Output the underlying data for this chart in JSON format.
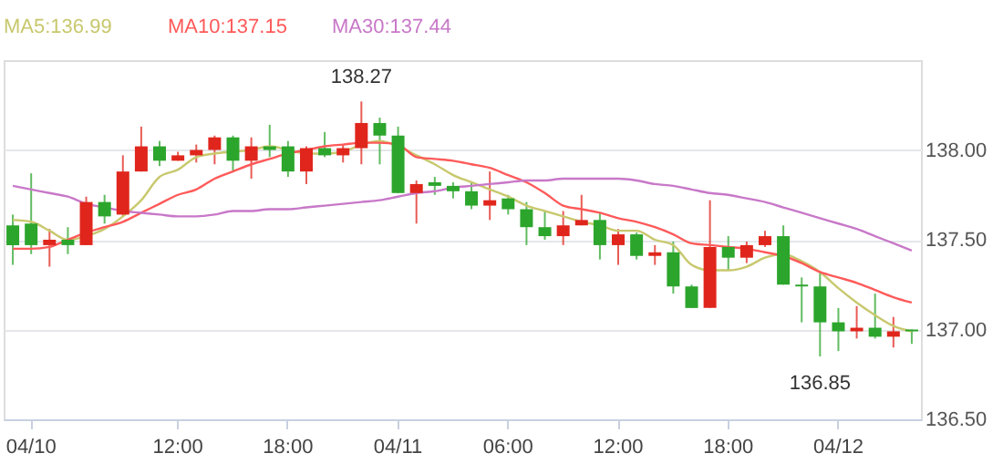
{
  "chart_data": {
    "type": "candlestick",
    "categories": [
      null,
      "04/10",
      null,
      null,
      null,
      null,
      null,
      null,
      null,
      "12:00",
      null,
      null,
      null,
      null,
      null,
      "18:00",
      null,
      null,
      null,
      null,
      null,
      "04/11",
      null,
      null,
      null,
      null,
      null,
      "06:00",
      null,
      null,
      null,
      null,
      null,
      "12:00",
      null,
      null,
      null,
      null,
      null,
      "18:00",
      null,
      null,
      null,
      null,
      null,
      "04/12",
      null,
      null,
      null,
      null
    ],
    "ohlc": [
      [
        137.58,
        137.64,
        137.36,
        137.47
      ],
      [
        137.59,
        137.87,
        137.42,
        137.47
      ],
      [
        137.47,
        137.56,
        137.35,
        137.5
      ],
      [
        137.5,
        137.57,
        137.42,
        137.47
      ],
      [
        137.47,
        137.74,
        137.47,
        137.71
      ],
      [
        137.71,
        137.75,
        137.59,
        137.63
      ],
      [
        137.64,
        137.97,
        137.63,
        137.88
      ],
      [
        137.88,
        138.13,
        137.88,
        138.02
      ],
      [
        138.02,
        138.05,
        137.91,
        137.94
      ],
      [
        137.94,
        137.99,
        137.94,
        137.97
      ],
      [
        137.97,
        138.03,
        137.93,
        138.0
      ],
      [
        138.0,
        138.08,
        137.92,
        138.07
      ],
      [
        138.07,
        138.08,
        137.88,
        137.94
      ],
      [
        137.94,
        138.07,
        137.84,
        138.02
      ],
      [
        138.02,
        138.14,
        137.96,
        138.0
      ],
      [
        138.02,
        138.05,
        137.85,
        137.88
      ],
      [
        137.88,
        138.02,
        137.81,
        138.01
      ],
      [
        138.01,
        138.1,
        137.96,
        137.97
      ],
      [
        137.97,
        138.03,
        137.93,
        138.01
      ],
      [
        138.01,
        138.27,
        137.92,
        138.15
      ],
      [
        138.15,
        138.18,
        137.92,
        138.08
      ],
      [
        138.08,
        138.13,
        137.76,
        137.76
      ],
      [
        137.76,
        137.83,
        137.59,
        137.81
      ],
      [
        137.82,
        137.85,
        137.75,
        137.8
      ],
      [
        137.8,
        137.82,
        137.73,
        137.77
      ],
      [
        137.77,
        137.82,
        137.67,
        137.69
      ],
      [
        137.69,
        137.88,
        137.61,
        137.72
      ],
      [
        137.73,
        137.75,
        137.64,
        137.67
      ],
      [
        137.67,
        137.71,
        137.47,
        137.57
      ],
      [
        137.57,
        137.66,
        137.5,
        137.52
      ],
      [
        137.52,
        137.66,
        137.47,
        137.58
      ],
      [
        137.58,
        137.75,
        137.58,
        137.61
      ],
      [
        137.61,
        137.65,
        137.39,
        137.47
      ],
      [
        137.47,
        137.56,
        137.36,
        137.53
      ],
      [
        137.53,
        137.54,
        137.39,
        137.41
      ],
      [
        137.41,
        137.47,
        137.36,
        137.43
      ],
      [
        137.43,
        137.49,
        137.2,
        137.24
      ],
      [
        137.24,
        137.25,
        137.12,
        137.12
      ],
      [
        137.12,
        137.72,
        137.12,
        137.46
      ],
      [
        137.46,
        137.52,
        137.33,
        137.4
      ],
      [
        137.4,
        137.49,
        137.37,
        137.47
      ],
      [
        137.47,
        137.55,
        137.46,
        137.52
      ],
      [
        137.52,
        137.58,
        137.25,
        137.25
      ],
      [
        137.25,
        137.29,
        137.04,
        137.24
      ],
      [
        137.24,
        137.32,
        136.85,
        137.04
      ],
      [
        137.04,
        137.12,
        136.88,
        136.99
      ],
      [
        136.99,
        137.13,
        136.95,
        137.01
      ],
      [
        137.01,
        137.2,
        136.95,
        136.96
      ],
      [
        136.96,
        137.07,
        136.9,
        136.99
      ],
      [
        137.0,
        137.0,
        136.92,
        136.99
      ]
    ],
    "colors": [
      "#2ca52c",
      "#2ca52c",
      "#e0261c",
      "#2ca52c",
      "#e0261c",
      "#2ca52c",
      "#e0261c",
      "#e0261c",
      "#2ca52c",
      "#e0261c",
      "#e0261c",
      "#e0261c",
      "#2ca52c",
      "#e0261c",
      "#2ca52c",
      "#2ca52c",
      "#e0261c",
      "#2ca52c",
      "#e0261c",
      "#e0261c",
      "#2ca52c",
      "#2ca52c",
      "#e0261c",
      "#2ca52c",
      "#2ca52c",
      "#2ca52c",
      "#e0261c",
      "#2ca52c",
      "#2ca52c",
      "#2ca52c",
      "#e0261c",
      "#e0261c",
      "#2ca52c",
      "#e0261c",
      "#2ca52c",
      "#e0261c",
      "#2ca52c",
      "#2ca52c",
      "#e0261c",
      "#2ca52c",
      "#e0261c",
      "#e0261c",
      "#2ca52c",
      "#2ca52c",
      "#2ca52c",
      "#2ca52c",
      "#e0261c",
      "#2ca52c",
      "#e0261c",
      "#2ca52c"
    ],
    "series": [
      {
        "name": "MA5:136.99",
        "type": "line",
        "color": "#c8c86e",
        "values": [
          137.61,
          137.6,
          137.55,
          137.5,
          137.52,
          137.56,
          137.63,
          137.72,
          137.85,
          137.89,
          137.96,
          137.98,
          137.99,
          138.0,
          138.02,
          138.0,
          137.98,
          137.98,
          137.99,
          138.03,
          138.05,
          138.02,
          137.97,
          137.92,
          137.86,
          137.82,
          137.78,
          137.74,
          137.69,
          137.66,
          137.63,
          137.6,
          137.58,
          137.55,
          137.55,
          137.5,
          137.47,
          137.36,
          137.33,
          137.33,
          137.35,
          137.4,
          137.42,
          137.38,
          137.32,
          137.23,
          137.15,
          137.08,
          137.02,
          136.99
        ]
      },
      {
        "name": "MA10:137.15",
        "type": "line",
        "color": "#ff5a5a",
        "values": [
          137.45,
          137.45,
          137.46,
          137.5,
          137.54,
          137.57,
          137.6,
          137.65,
          137.7,
          137.75,
          137.78,
          137.84,
          137.88,
          137.92,
          137.95,
          137.98,
          138.0,
          138.02,
          138.03,
          138.04,
          138.04,
          138.03,
          137.96,
          137.95,
          137.94,
          137.92,
          137.9,
          137.86,
          137.82,
          137.76,
          137.69,
          137.67,
          137.65,
          137.62,
          137.6,
          137.57,
          137.53,
          137.48,
          137.47,
          137.46,
          137.45,
          137.43,
          137.41,
          137.37,
          137.32,
          137.29,
          137.26,
          137.22,
          137.18,
          137.15
        ]
      },
      {
        "name": "MA30:137.44",
        "type": "line",
        "color": "#c878c8",
        "values": [
          137.8,
          137.78,
          137.76,
          137.74,
          137.7,
          137.68,
          137.66,
          137.65,
          137.64,
          137.63,
          137.63,
          137.64,
          137.66,
          137.66,
          137.67,
          137.67,
          137.68,
          137.69,
          137.7,
          137.71,
          137.72,
          137.74,
          137.76,
          137.77,
          137.79,
          137.8,
          137.81,
          137.82,
          137.83,
          137.83,
          137.84,
          137.84,
          137.84,
          137.84,
          137.83,
          137.81,
          137.8,
          137.78,
          137.76,
          137.75,
          137.73,
          137.71,
          137.68,
          137.65,
          137.62,
          137.59,
          137.56,
          137.52,
          137.48,
          137.44
        ]
      }
    ],
    "ylim": [
      136.5,
      138.5
    ],
    "yticks": [
      {
        "value": 136.5,
        "label": "136.50"
      },
      {
        "value": 137,
        "label": "137.00"
      },
      {
        "value": 137.5,
        "label": "137.50"
      },
      {
        "value": 138,
        "label": "138.00"
      }
    ],
    "grid": "y",
    "legend": "top left",
    "annotations": [
      {
        "text": "138.27",
        "y": 138.27
      },
      {
        "text": "136.85",
        "y": 136.85
      }
    ]
  }
}
